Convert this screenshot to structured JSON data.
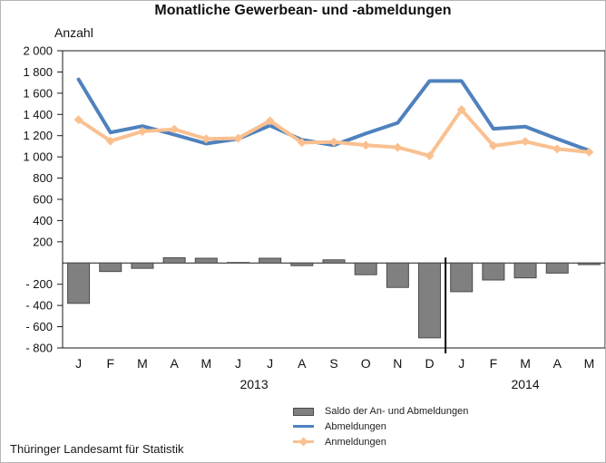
{
  "title": "Monatliche Gewerbean- und -abmeldungen",
  "y_axis_title": "Anzahl",
  "source": "Thüringer Landesamt für Statistik",
  "colors": {
    "abmeldungen": "#4F81BD",
    "anmeldungen": "#FAC090",
    "saldo_fill": "#808080",
    "saldo_border": "#4a4a4a",
    "axis": "#1a1a1a",
    "divider": "#000000"
  },
  "legend": [
    {
      "label": "Saldo der An- und Abmeldungen",
      "type": "bar",
      "color": "#808080"
    },
    {
      "label": "Abmeldungen",
      "type": "line",
      "color": "#4F81BD"
    },
    {
      "label": "Anmeldungen",
      "type": "line-marker",
      "color": "#FAC090"
    }
  ],
  "chart_data": {
    "type": "line+bar combo",
    "categories": [
      "J",
      "F",
      "M",
      "A",
      "M",
      "J",
      "J",
      "A",
      "S",
      "O",
      "N",
      "D",
      "J",
      "F",
      "M",
      "A",
      "M"
    ],
    "year_groups": [
      {
        "label": "2013",
        "from": 0,
        "to": 11
      },
      {
        "label": "2014",
        "from": 12,
        "to": 16
      }
    ],
    "series": [
      {
        "name": "Saldo der An- und Abmeldungen",
        "type": "bar",
        "color": "#808080",
        "values": [
          -380,
          -80,
          -50,
          50,
          45,
          5,
          45,
          -25,
          30,
          -110,
          -230,
          -705,
          -270,
          -160,
          -140,
          -95,
          -15
        ]
      },
      {
        "name": "Abmeldungen",
        "type": "line",
        "color": "#4F81BD",
        "values": [
          1730,
          1230,
          1290,
          1210,
          1125,
          1170,
          1295,
          1160,
          1110,
          1220,
          1320,
          1715,
          1715,
          1265,
          1285,
          1170,
          1060
        ]
      },
      {
        "name": "Anmeldungen",
        "type": "line",
        "marker": "diamond",
        "color": "#FAC090",
        "values": [
          1350,
          1150,
          1240,
          1260,
          1170,
          1175,
          1340,
          1135,
          1140,
          1110,
          1090,
          1010,
          1445,
          1105,
          1145,
          1075,
          1045
        ]
      }
    ],
    "ylim": [
      -800,
      2000
    ],
    "y_ticks": [
      {
        "v": 2000,
        "label": "2 000"
      },
      {
        "v": 1800,
        "label": "1 800"
      },
      {
        "v": 1600,
        "label": "1 600"
      },
      {
        "v": 1400,
        "label": "1 400"
      },
      {
        "v": 1200,
        "label": "1 200"
      },
      {
        "v": 1000,
        "label": "1 000"
      },
      {
        "v": 800,
        "label": "800"
      },
      {
        "v": 600,
        "label": "600"
      },
      {
        "v": 400,
        "label": "400"
      },
      {
        "v": 200,
        "label": "200"
      },
      {
        "v": -200,
        "label": "- 200"
      },
      {
        "v": -400,
        "label": "- 400"
      },
      {
        "v": -600,
        "label": "- 600"
      },
      {
        "v": -800,
        "label": "- 800"
      }
    ],
    "zero_line": true,
    "grid": false,
    "year_divider_after_index": 11,
    "legend_position": "bottom"
  }
}
